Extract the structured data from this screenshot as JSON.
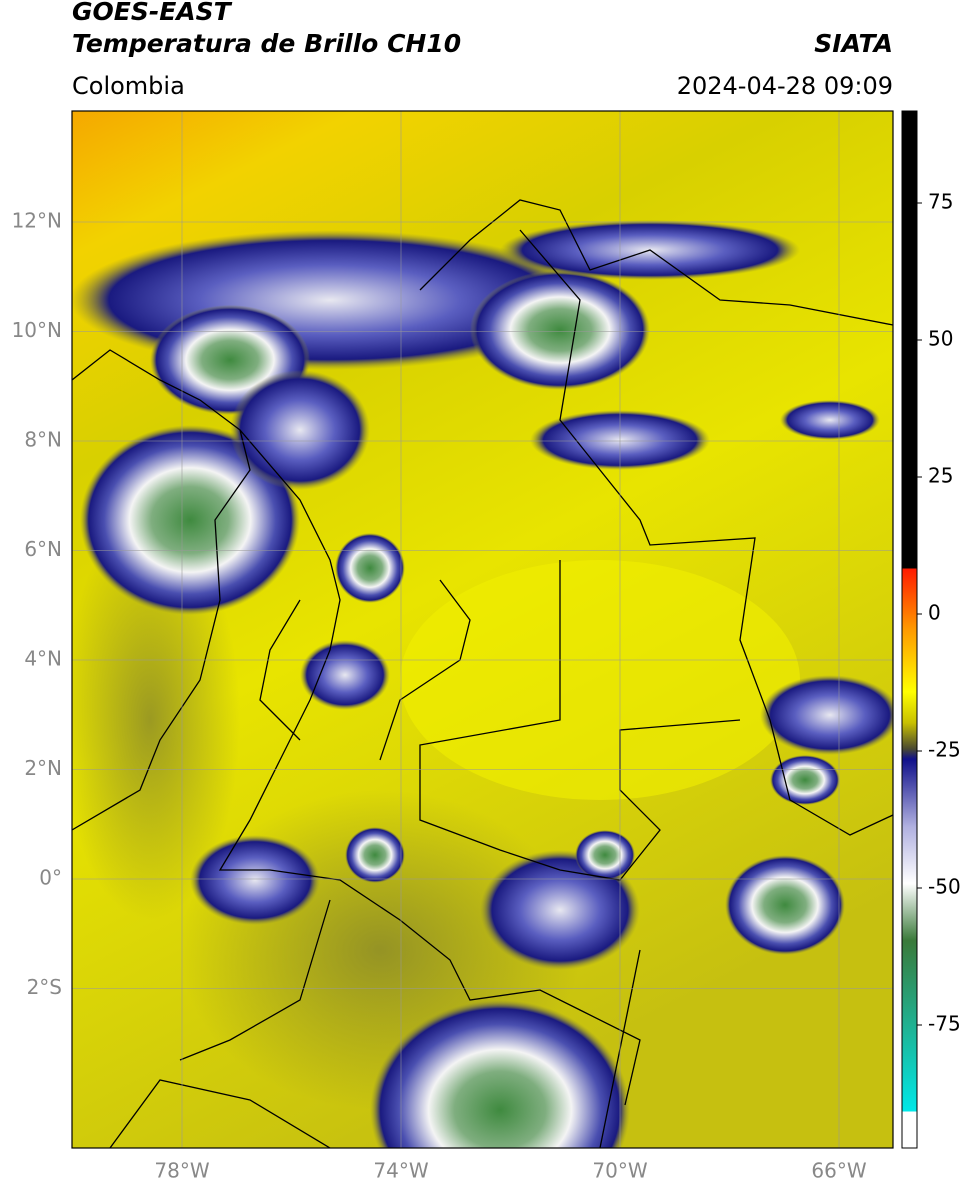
{
  "header": {
    "title": "GOES-EAST",
    "subtitle": "Temperatura de Brillo CH10",
    "region": "Colombia",
    "source": "SIATA",
    "timestamp": "2024-04-28 09:09"
  },
  "map": {
    "lat_labels": [
      "12°N",
      "10°N",
      "8°N",
      "6°N",
      "4°N",
      "2°N",
      "0°",
      "2°S"
    ],
    "lon_labels": [
      "78°W",
      "74°W",
      "70°W",
      "66°W"
    ]
  },
  "colorbar": {
    "ticks": [
      75,
      50,
      25,
      0,
      -25,
      -50,
      -75
    ]
  }
}
